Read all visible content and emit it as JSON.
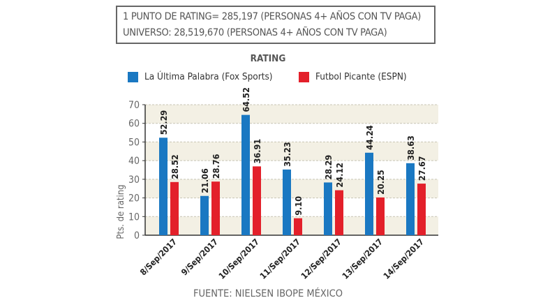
{
  "note_box": {
    "line1": "1 PUNTO DE RATING= 285,197 (PERSONAS 4+ AÑOS CON TV PAGA)",
    "line2": "UNIVERSO: 28,519,670 (PERSONAS 4+ AÑOS CON TV PAGA)"
  },
  "source": "FUENTE: NIELSEN IBOPE MÉXICO",
  "chart_data": {
    "type": "bar",
    "title": "RATING",
    "ylabel": "Pts. de rating",
    "xlabel": "",
    "ylim": [
      0,
      70
    ],
    "yticks": [
      0,
      10,
      20,
      30,
      40,
      50,
      60,
      70
    ],
    "grid": true,
    "legend_position": "top",
    "categories": [
      "8/Sep/2017",
      "9/Sep/2017",
      "10/Sep/2017",
      "11/Sep/2017",
      "12/Sep/2017",
      "13/Sep/2017",
      "14/Sep/2017"
    ],
    "series": [
      {
        "name": "La Última Palabra (Fox Sports)",
        "color": "#1a78c2",
        "values": [
          52.29,
          21.06,
          64.52,
          35.23,
          28.29,
          44.24,
          38.63
        ],
        "labels": [
          "52.29",
          "21.06",
          "64.52",
          "35.23",
          "28.29",
          "44.24",
          "38.63"
        ]
      },
      {
        "name": "Futbol Picante (ESPN)",
        "color": "#e3202a",
        "values": [
          28.52,
          28.76,
          36.91,
          9.1,
          24.12,
          20.25,
          27.67
        ],
        "labels": [
          "28.52",
          "28.76",
          "36.91",
          "9.10",
          "24.12",
          "20.25",
          "27.67"
        ]
      }
    ],
    "band_color": "#f3f0e4"
  }
}
